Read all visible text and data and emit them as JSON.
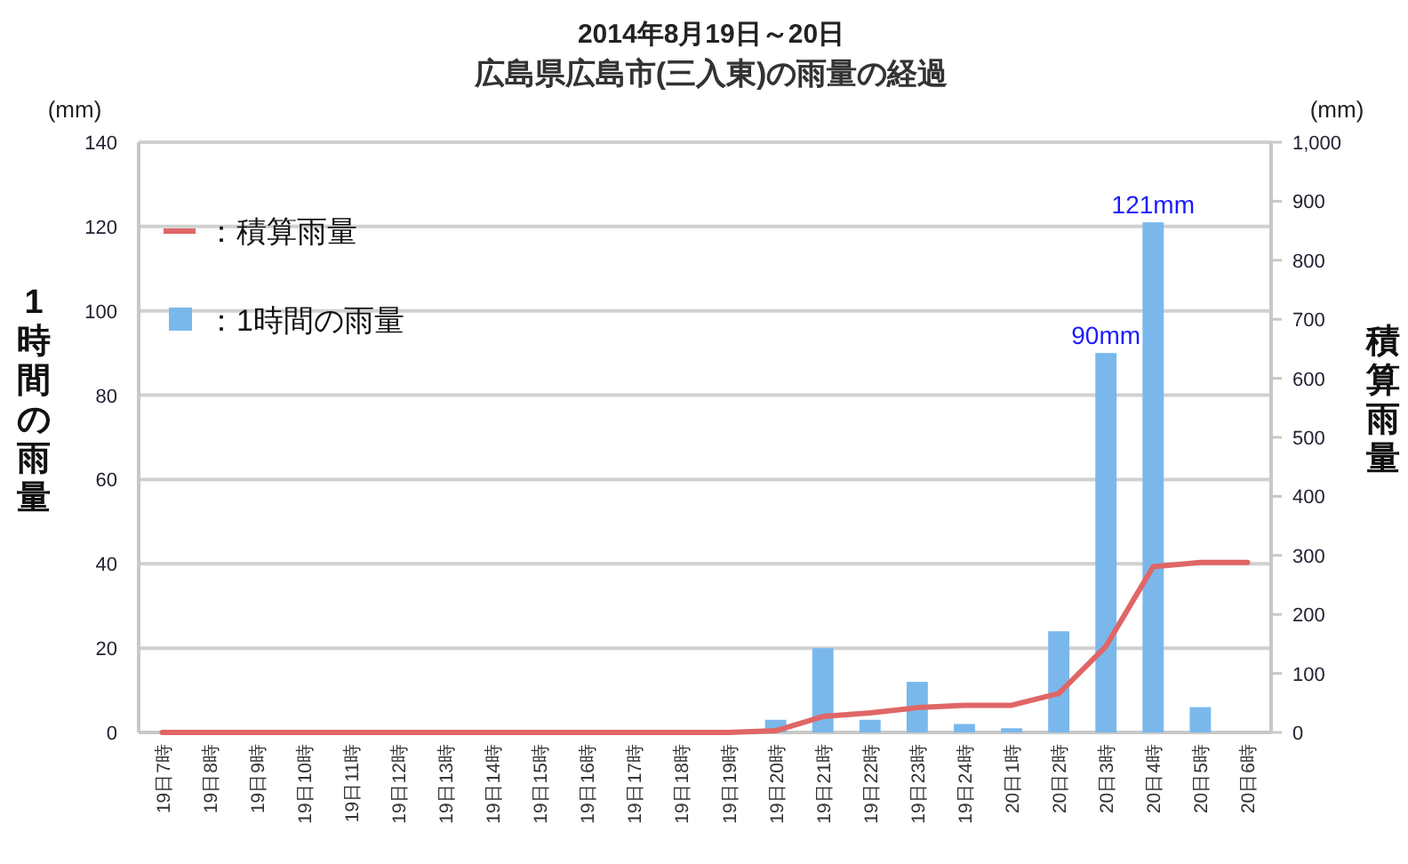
{
  "chart_data": {
    "type": "bar",
    "title": "2014年8月19日～20日",
    "subtitle": "広島県広島市(三入東)の雨量の経過",
    "ylabel": "1時間の雨量",
    "y2label": "積算雨量",
    "annotations": [
      "(mm)",
      "(mm)"
    ],
    "categories": [
      "19日7時",
      "19日8時",
      "19日9時",
      "19日10時",
      "19日11時",
      "19日12時",
      "19日13時",
      "19日14時",
      "19日15時",
      "19日16時",
      "19日17時",
      "19日18時",
      "19日19時",
      "19日20時",
      "19日21時",
      "19日22時",
      "19日23時",
      "19日24時",
      "20日1時",
      "20日2時",
      "20日3時",
      "20日4時",
      "20日5時",
      "20日6時"
    ],
    "series": [
      {
        "name": "：積算雨量",
        "type": "line",
        "axis": "y2",
        "color": "#e06666",
        "values": [
          0,
          0,
          0,
          0,
          0,
          0,
          0,
          0,
          0,
          0,
          0,
          0,
          0,
          3,
          27,
          33,
          42,
          46,
          46,
          66,
          146,
          281,
          288,
          288
        ]
      },
      {
        "name": "：1時間の雨量",
        "color": "#7ab8ec",
        "values": [
          0,
          0,
          0,
          0,
          0,
          0,
          0,
          0,
          0,
          0,
          0,
          0,
          0,
          3,
          20,
          3,
          12,
          2,
          1,
          24,
          90,
          121,
          6,
          0
        ],
        "value_labels": [
          null,
          null,
          null,
          null,
          null,
          null,
          null,
          null,
          null,
          null,
          null,
          null,
          null,
          null,
          null,
          null,
          null,
          null,
          null,
          null,
          "90mm",
          "121mm",
          null,
          null
        ]
      }
    ],
    "ylim": [
      0,
      140
    ],
    "yticks": [
      0,
      20,
      40,
      60,
      80,
      100,
      120,
      140
    ],
    "y2lim": [
      0,
      1000
    ],
    "y2ticks": [
      0,
      100,
      200,
      300,
      400,
      500,
      600,
      700,
      800,
      900,
      {
        "value": 1000,
        "label": "1,000"
      }
    ],
    "grid": "y",
    "legend": "top left"
  }
}
